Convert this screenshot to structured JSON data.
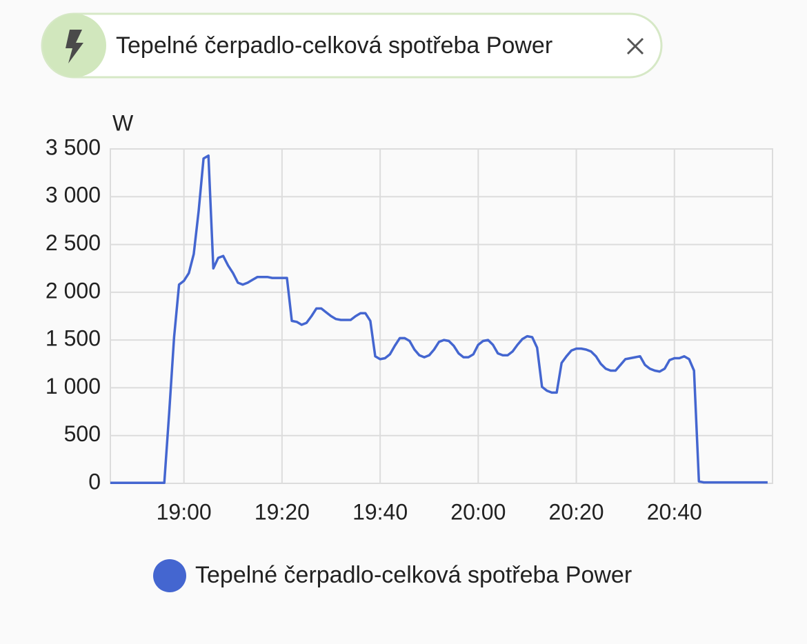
{
  "filter_chip": {
    "label": "Tepelné čerpadlo-celková spotřeba Power"
  },
  "chart_data": {
    "type": "line",
    "y_label": "W",
    "x": [
      "18:45",
      "18:56",
      "18:57",
      "18:58",
      "18:59",
      "19:00",
      "19:01",
      "19:02",
      "19:03",
      "19:04",
      "19:05",
      "19:06",
      "19:07",
      "19:08",
      "19:09",
      "19:10",
      "19:11",
      "19:12",
      "19:13",
      "19:14",
      "19:15",
      "19:16",
      "19:17",
      "19:18",
      "19:19",
      "19:20",
      "19:21",
      "19:22",
      "19:23",
      "19:24",
      "19:25",
      "19:26",
      "19:27",
      "19:28",
      "19:29",
      "19:30",
      "19:31",
      "19:32",
      "19:33",
      "19:34",
      "19:35",
      "19:36",
      "19:37",
      "19:38",
      "19:39",
      "19:40",
      "19:41",
      "19:42",
      "19:43",
      "19:44",
      "19:45",
      "19:46",
      "19:47",
      "19:48",
      "19:49",
      "19:50",
      "19:51",
      "19:52",
      "19:53",
      "19:54",
      "19:55",
      "19:56",
      "19:57",
      "19:58",
      "19:59",
      "20:00",
      "20:01",
      "20:02",
      "20:03",
      "20:04",
      "20:05",
      "20:06",
      "20:07",
      "20:08",
      "20:09",
      "20:10",
      "20:11",
      "20:12",
      "20:13",
      "20:14",
      "20:15",
      "20:16",
      "20:17",
      "20:18",
      "20:19",
      "20:20",
      "20:21",
      "20:22",
      "20:23",
      "20:24",
      "20:25",
      "20:26",
      "20:27",
      "20:28",
      "20:29",
      "20:30",
      "20:31",
      "20:32",
      "20:33",
      "20:34",
      "20:35",
      "20:36",
      "20:37",
      "20:38",
      "20:39",
      "20:40",
      "20:41",
      "20:42",
      "20:43",
      "20:44",
      "20:45",
      "20:46",
      "20:59"
    ],
    "series": [
      {
        "name": "Tepelné čerpadlo-celková spotřeba Power",
        "color": "#4466d0",
        "values": [
          5,
          5,
          740,
          1530,
          2080,
          2120,
          2200,
          2400,
          2850,
          3400,
          3430,
          2250,
          2360,
          2380,
          2280,
          2200,
          2100,
          2080,
          2100,
          2130,
          2160,
          2160,
          2160,
          2150,
          2150,
          2150,
          2150,
          1700,
          1690,
          1660,
          1680,
          1750,
          1830,
          1830,
          1790,
          1750,
          1720,
          1710,
          1710,
          1710,
          1750,
          1780,
          1780,
          1700,
          1330,
          1300,
          1310,
          1350,
          1440,
          1520,
          1520,
          1490,
          1400,
          1340,
          1320,
          1340,
          1400,
          1480,
          1500,
          1490,
          1440,
          1360,
          1320,
          1320,
          1350,
          1450,
          1490,
          1500,
          1450,
          1360,
          1340,
          1340,
          1380,
          1450,
          1510,
          1540,
          1530,
          1420,
          1010,
          970,
          950,
          950,
          1260,
          1330,
          1390,
          1410,
          1410,
          1400,
          1380,
          1330,
          1250,
          1200,
          1180,
          1180,
          1240,
          1300,
          1310,
          1320,
          1330,
          1240,
          1200,
          1180,
          1170,
          1200,
          1290,
          1310,
          1310,
          1330,
          1300,
          1180,
          20,
          10,
          10
        ]
      }
    ],
    "xlim": [
      "18:45",
      "21:00"
    ],
    "xticks": [
      "19:00",
      "19:20",
      "19:40",
      "20:00",
      "20:20",
      "20:40"
    ],
    "ylim": [
      0,
      3500
    ],
    "yticks": [
      0,
      500,
      {
        "value": 1000,
        "label": "1 000"
      },
      {
        "value": 1500,
        "label": "1 500"
      },
      {
        "value": 2000,
        "label": "2 000"
      },
      {
        "value": 2500,
        "label": "2 500"
      },
      {
        "value": 3000,
        "label": "3 000"
      },
      {
        "value": 3500,
        "label": "3 500"
      }
    ],
    "grid": true,
    "legend": "bottom"
  }
}
